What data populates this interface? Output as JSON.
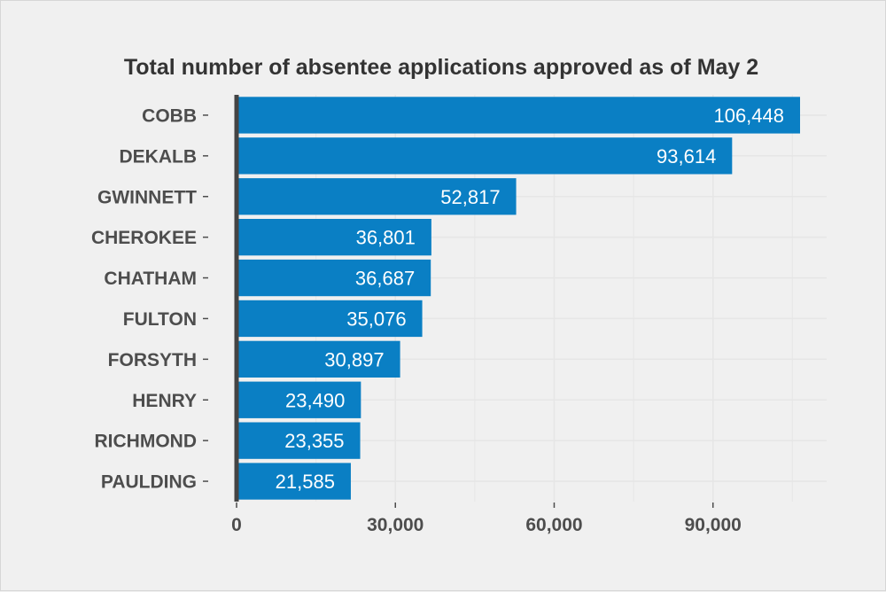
{
  "chart_data": {
    "type": "bar",
    "orientation": "horizontal",
    "title": "Total number of absentee applications approved as of May 2",
    "xlabel": "",
    "ylabel": "",
    "categories": [
      "COBB",
      "DEKALB",
      "GWINNETT",
      "CHEROKEE",
      "CHATHAM",
      "FULTON",
      "FORSYTH",
      "HENRY",
      "RICHMOND",
      "PAULDING"
    ],
    "values": [
      106448,
      93614,
      52817,
      36801,
      36687,
      35076,
      30897,
      23490,
      23355,
      21585
    ],
    "value_labels": [
      "106,448",
      "93,614",
      "52,817",
      "36,801",
      "36,687",
      "35,076",
      "30,897",
      "23,490",
      "23,355",
      "21,585"
    ],
    "x_ticks": [
      0,
      30000,
      60000,
      90000
    ],
    "x_tick_labels": [
      "0",
      "30,000",
      "60,000",
      "90,000"
    ],
    "xlim": [
      0,
      112000
    ],
    "grid": true,
    "legend": "none",
    "colors": {
      "bar": "#0a7fc4",
      "background": "#f0f0f0",
      "grid": "#e6e6e6",
      "axis_line": "#444444",
      "text": "#4d4d4d",
      "value_text": "#ffffff"
    }
  }
}
